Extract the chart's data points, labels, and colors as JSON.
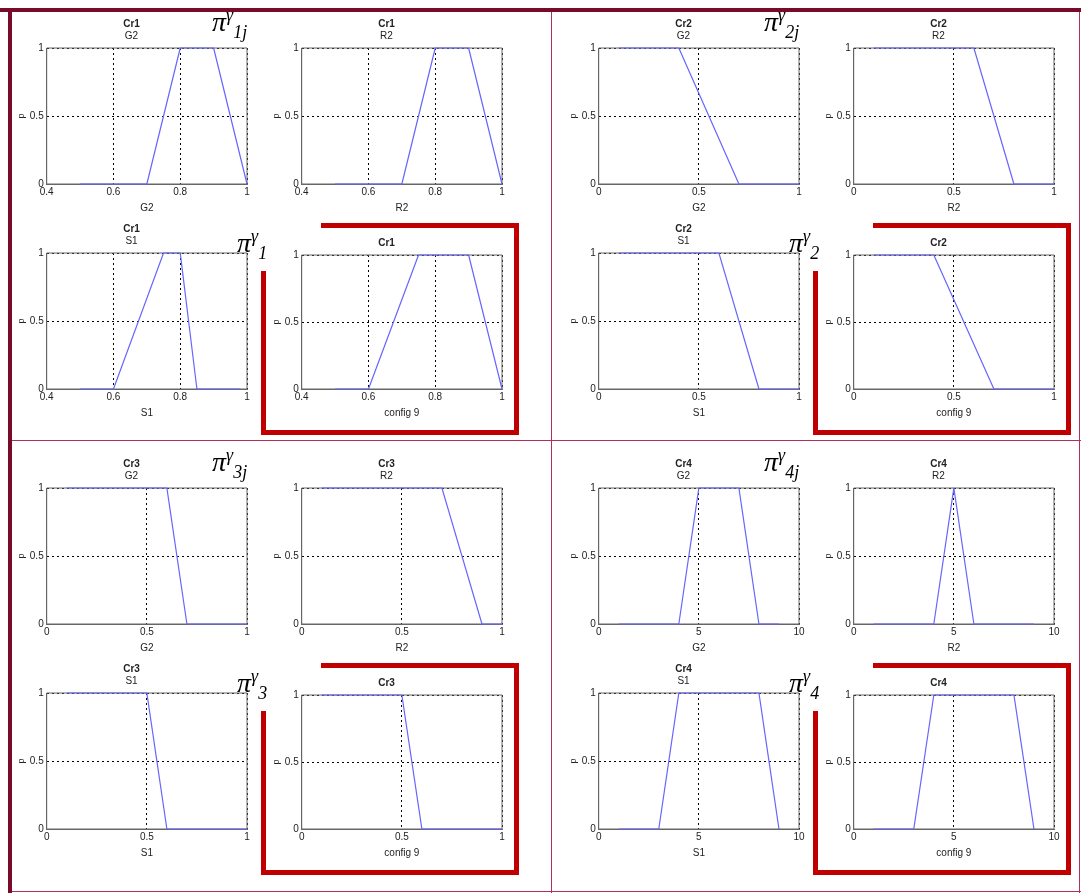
{
  "chart_data": [
    {
      "type": "line",
      "title": "Cr1",
      "subtitle": "G2",
      "xlabel": "G2",
      "ylabel": "p",
      "annotations": [
        "π$^{γ}$$_{1j}$"
      ],
      "x": [
        0.5,
        0.7,
        0.8,
        0.9,
        1
      ],
      "values": [
        0,
        0,
        1,
        1,
        0
      ],
      "color": "#6666ff",
      "xlim": [
        0.4,
        1
      ],
      "xticks": [
        0.4,
        0.6,
        0.8,
        1
      ],
      "ylim": [
        0,
        1
      ],
      "yticks": [
        0,
        0.5,
        1
      ],
      "grid": true,
      "marker": "none"
    },
    {
      "type": "line",
      "title": "Cr1",
      "subtitle": "R2",
      "xlabel": "R2",
      "ylabel": "p",
      "x": [
        0.5,
        0.7,
        0.8,
        0.9,
        1
      ],
      "values": [
        0,
        0,
        1,
        1,
        0
      ],
      "color": "#6666ff",
      "xlim": [
        0.4,
        1
      ],
      "xticks": [
        0.4,
        0.6,
        0.8,
        1
      ],
      "ylim": [
        0,
        1
      ],
      "yticks": [
        0,
        0.5,
        1
      ],
      "grid": true,
      "marker": "none"
    },
    {
      "type": "line",
      "title": "Cr1",
      "subtitle": "S1",
      "xlabel": "S1",
      "ylabel": "p",
      "x": [
        0.5,
        0.6,
        0.75,
        0.8,
        0.85,
        0.98
      ],
      "values": [
        0,
        0,
        1,
        1,
        0,
        0
      ],
      "color": "#6666ff",
      "xlim": [
        0.4,
        1
      ],
      "xticks": [
        0.4,
        0.6,
        0.8,
        1
      ],
      "ylim": [
        0,
        1
      ],
      "yticks": [
        0,
        0.5,
        1
      ],
      "grid": true,
      "marker": "none"
    },
    {
      "type": "line",
      "title": "Cr1",
      "xlabel": "config 9",
      "ylabel": "p",
      "annotations": [
        "π$^{γ}$$_{1}$"
      ],
      "x": [
        0.5,
        0.6,
        0.75,
        0.9,
        1
      ],
      "values": [
        0,
        0,
        1,
        1,
        0
      ],
      "color": "#6666ff",
      "xlim": [
        0.4,
        1
      ],
      "xticks": [
        0.4,
        0.6,
        0.8,
        1
      ],
      "ylim": [
        0,
        1
      ],
      "yticks": [
        0,
        0.5,
        1
      ],
      "grid": true,
      "marker": "none"
    },
    {
      "type": "line",
      "title": "Cr2",
      "subtitle": "G2",
      "xlabel": "G2",
      "ylabel": "p",
      "annotations": [
        "π$^{γ}$$_{2j}$"
      ],
      "x": [
        0.1,
        0.4,
        0.7,
        1
      ],
      "values": [
        1,
        1,
        0,
        0
      ],
      "color": "#6666ff",
      "xlim": [
        0,
        1
      ],
      "xticks": [
        0,
        0.5,
        1
      ],
      "ylim": [
        0,
        1
      ],
      "yticks": [
        0,
        0.5,
        1
      ],
      "grid": true,
      "marker": "none"
    },
    {
      "type": "line",
      "title": "Cr2",
      "subtitle": "R2",
      "xlabel": "R2",
      "ylabel": "p",
      "x": [
        0.1,
        0.6,
        0.8,
        1
      ],
      "values": [
        1,
        1,
        0,
        0
      ],
      "color": "#6666ff",
      "xlim": [
        0,
        1
      ],
      "xticks": [
        0,
        0.5,
        1
      ],
      "ylim": [
        0,
        1
      ],
      "yticks": [
        0,
        0.5,
        1
      ],
      "grid": true,
      "marker": "none"
    },
    {
      "type": "line",
      "title": "Cr2",
      "subtitle": "S1",
      "xlabel": "S1",
      "ylabel": "p",
      "x": [
        0.1,
        0.6,
        0.8,
        1
      ],
      "values": [
        1,
        1,
        0,
        0
      ],
      "color": "#6666ff",
      "xlim": [
        0,
        1
      ],
      "xticks": [
        0,
        0.5,
        1
      ],
      "ylim": [
        0,
        1
      ],
      "yticks": [
        0,
        0.5,
        1
      ],
      "grid": true,
      "marker": "none"
    },
    {
      "type": "line",
      "title": "Cr2",
      "xlabel": "config 9",
      "ylabel": "p",
      "annotations": [
        "π$^{γ}$$_{2}$"
      ],
      "x": [
        0.1,
        0.4,
        0.7,
        1
      ],
      "values": [
        1,
        1,
        0,
        0
      ],
      "color": "#6666ff",
      "xlim": [
        0,
        1
      ],
      "xticks": [
        0,
        0.5,
        1
      ],
      "ylim": [
        0,
        1
      ],
      "yticks": [
        0,
        0.5,
        1
      ],
      "grid": true,
      "marker": "none"
    },
    {
      "type": "line",
      "title": "Cr3",
      "subtitle": "G2",
      "xlabel": "G2",
      "ylabel": "p",
      "annotations": [
        "π$^{γ}$$_{3j}$"
      ],
      "x": [
        0.1,
        0.6,
        0.7,
        1
      ],
      "values": [
        1,
        1,
        0,
        0
      ],
      "color": "#6666ff",
      "xlim": [
        0,
        1
      ],
      "xticks": [
        0,
        0.5,
        1
      ],
      "ylim": [
        0,
        1
      ],
      "yticks": [
        0,
        0.5,
        1
      ],
      "grid": true,
      "marker": "none"
    },
    {
      "type": "line",
      "title": "Cr3",
      "subtitle": "R2",
      "xlabel": "R2",
      "ylabel": "p",
      "x": [
        0.1,
        0.7,
        0.9,
        1
      ],
      "values": [
        1,
        1,
        0,
        0
      ],
      "color": "#6666ff",
      "xlim": [
        0,
        1
      ],
      "xticks": [
        0,
        0.5,
        1
      ],
      "ylim": [
        0,
        1
      ],
      "yticks": [
        0,
        0.5,
        1
      ],
      "grid": true,
      "marker": "none"
    },
    {
      "type": "line",
      "title": "Cr3",
      "subtitle": "S1",
      "xlabel": "S1",
      "ylabel": "p",
      "x": [
        0.1,
        0.5,
        0.6,
        1
      ],
      "values": [
        1,
        1,
        0,
        0
      ],
      "color": "#6666ff",
      "xlim": [
        0,
        1
      ],
      "xticks": [
        0,
        0.5,
        1
      ],
      "ylim": [
        0,
        1
      ],
      "yticks": [
        0,
        0.5,
        1
      ],
      "grid": true,
      "marker": "none"
    },
    {
      "type": "line",
      "title": "Cr3",
      "xlabel": "config 9",
      "ylabel": "p",
      "annotations": [
        "π$^{γ}$$_{3}$"
      ],
      "x": [
        0.1,
        0.5,
        0.6,
        1
      ],
      "values": [
        1,
        1,
        0,
        0
      ],
      "color": "#6666ff",
      "xlim": [
        0,
        1
      ],
      "xticks": [
        0,
        0.5,
        1
      ],
      "ylim": [
        0,
        1
      ],
      "yticks": [
        0,
        0.5,
        1
      ],
      "grid": true,
      "marker": "none"
    },
    {
      "type": "line",
      "title": "Cr4",
      "subtitle": "G2",
      "xlabel": "G2",
      "ylabel": "p",
      "annotations": [
        "π$^{γ}$$_{4j}$"
      ],
      "x": [
        1,
        4,
        5,
        7,
        8,
        9
      ],
      "values": [
        0,
        0,
        1,
        1,
        0,
        0
      ],
      "color": "#6666ff",
      "xlim": [
        0,
        10
      ],
      "xticks": [
        0,
        5,
        10
      ],
      "ylim": [
        0,
        1
      ],
      "yticks": [
        0,
        0.5,
        1
      ],
      "grid": true,
      "marker": "none"
    },
    {
      "type": "line",
      "title": "Cr4",
      "subtitle": "R2",
      "xlabel": "R2",
      "ylabel": "p",
      "x": [
        1,
        4,
        5,
        6,
        9
      ],
      "values": [
        0,
        0,
        1,
        0,
        0
      ],
      "color": "#6666ff",
      "xlim": [
        0,
        10
      ],
      "xticks": [
        0,
        5,
        10
      ],
      "ylim": [
        0,
        1
      ],
      "yticks": [
        0,
        0.5,
        1
      ],
      "grid": true,
      "marker": "none"
    },
    {
      "type": "line",
      "title": "Cr4",
      "subtitle": "S1",
      "xlabel": "S1",
      "ylabel": "p",
      "x": [
        1,
        3,
        4,
        8,
        9
      ],
      "values": [
        0,
        0,
        1,
        1,
        0
      ],
      "color": "#6666ff",
      "xlim": [
        0,
        10
      ],
      "xticks": [
        0,
        5,
        10
      ],
      "ylim": [
        0,
        1
      ],
      "yticks": [
        0,
        0.5,
        1
      ],
      "grid": true,
      "marker": "none"
    },
    {
      "type": "line",
      "title": "Cr4",
      "xlabel": "config 9",
      "ylabel": "p",
      "annotations": [
        "π$^{γ}$$_{4}$"
      ],
      "x": [
        1,
        3,
        4,
        8,
        9
      ],
      "values": [
        0,
        0,
        1,
        1,
        0
      ],
      "color": "#6666ff",
      "xlim": [
        0,
        10
      ],
      "xticks": [
        0,
        5,
        10
      ],
      "ylim": [
        0,
        1
      ],
      "yticks": [
        0,
        0.5,
        1
      ],
      "grid": true,
      "marker": "none"
    }
  ]
}
